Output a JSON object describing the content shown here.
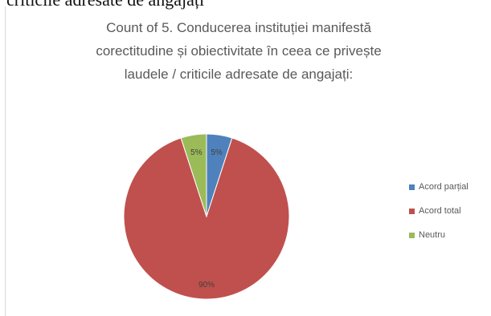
{
  "page": {
    "top_text": "criticile adresate de angajați"
  },
  "chart_data": {
    "type": "pie",
    "title_lines": [
      "Count of 5. Conducerea instituției manifestă",
      "corectitudine și obiectivitate în ceea ce privește",
      "laudele / criticile adresate de angajați:"
    ],
    "categories": [
      "Acord parțial",
      "Acord total",
      "Neutru"
    ],
    "values": [
      5,
      90,
      5
    ],
    "data_labels": [
      "5%",
      "90%",
      "5%"
    ],
    "colors": [
      "#4f81bd",
      "#c0504d",
      "#9bbb59"
    ],
    "legend_position": "right"
  }
}
